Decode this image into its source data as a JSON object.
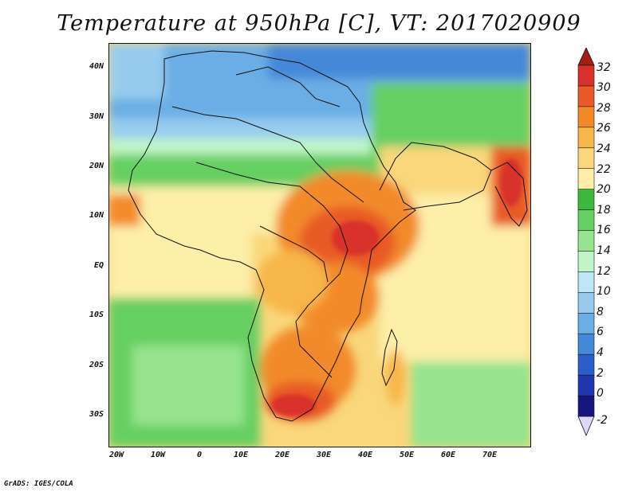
{
  "title": "Temperature at 950hPa [C], VT: 2017020909",
  "credit": "GrADS: IGES/COLA",
  "lat_labels": [
    "40N",
    "30N",
    "20N",
    "10N",
    "EQ",
    "10S",
    "20S",
    "30S"
  ],
  "lon_labels": [
    "20W",
    "10W",
    "0",
    "10E",
    "20E",
    "30E",
    "40E",
    "50E",
    "60E",
    "70E"
  ],
  "colorbar": {
    "labels": [
      "32",
      "30",
      "28",
      "26",
      "24",
      "22",
      "20",
      "18",
      "16",
      "14",
      "12",
      "10",
      "8",
      "6",
      "4",
      "2",
      "0",
      "-2"
    ],
    "colors": [
      "#d8302a",
      "#e85a28",
      "#f28a2a",
      "#f7b648",
      "#f9d77a",
      "#fdeea8",
      "#3cb83c",
      "#66cf62",
      "#96e48e",
      "#bff5c8",
      "#bfe6f7",
      "#97ccef",
      "#6aaee5",
      "#4488d8",
      "#2a5ec8",
      "#2236b0",
      "#17157e"
    ],
    "top_arrow_color": "#a11e14",
    "bottom_arrow_color": "#dcd8f8"
  }
}
